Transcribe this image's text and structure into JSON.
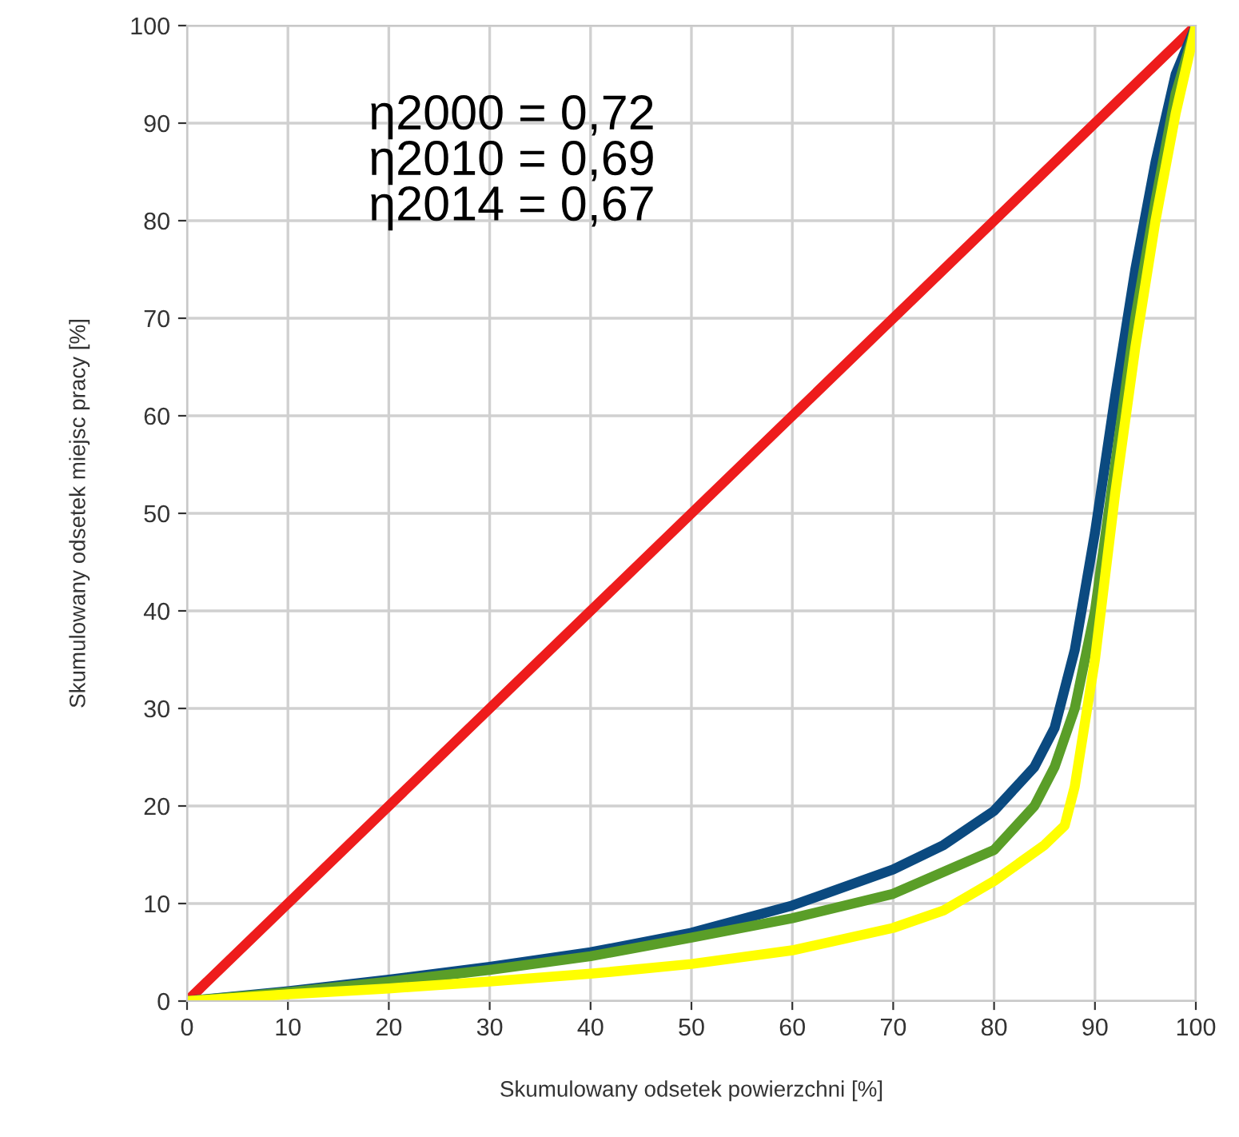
{
  "chart_data": {
    "type": "line",
    "xlabel": "Skumulowany odsetek powierzchni [%]",
    "ylabel": "Skumulowany odsetek miejsc pracy [%]",
    "annotations": [
      "η2000 = 0,72\nη2010 = 0,69\nη2014 = 0,67"
    ],
    "xlim": [
      0,
      100
    ],
    "ylim": [
      0,
      100
    ],
    "xticks": [
      0,
      10,
      20,
      30,
      40,
      50,
      60,
      70,
      80,
      90,
      100
    ],
    "yticks": [
      0,
      10,
      20,
      30,
      40,
      50,
      60,
      70,
      80,
      90,
      100
    ],
    "grid": true,
    "marker": "none",
    "line_style": "solid",
    "series": [
      {
        "color": "#ee1c1c",
        "x": [
          0,
          100
        ],
        "values": [
          0,
          100
        ]
      },
      {
        "color": "#0b4a80",
        "x": [
          0,
          10,
          20,
          30,
          40,
          50,
          60,
          70,
          75,
          80,
          84,
          86,
          88,
          90,
          92,
          94,
          96,
          98,
          100
        ],
        "values": [
          0,
          1,
          2.2,
          3.5,
          5,
          7,
          9.8,
          13.5,
          16,
          19.5,
          24,
          28,
          36,
          48,
          62,
          75,
          86,
          95,
          100
        ]
      },
      {
        "color": "#5a9e28",
        "x": [
          0,
          10,
          20,
          30,
          40,
          50,
          60,
          70,
          80,
          84,
          86,
          88,
          90,
          92,
          94,
          96,
          98,
          100
        ],
        "values": [
          0,
          0.9,
          2,
          3.2,
          4.6,
          6.5,
          8.5,
          11,
          15.5,
          20,
          24,
          30,
          40,
          55,
          70,
          82,
          93,
          100
        ]
      },
      {
        "color": "#ffff00",
        "x": [
          0,
          10,
          20,
          30,
          40,
          50,
          60,
          70,
          75,
          80,
          85,
          87,
          88,
          90,
          92,
          94,
          96,
          98,
          100
        ],
        "values": [
          0,
          0.7,
          1.3,
          2,
          2.8,
          3.8,
          5.2,
          7.5,
          9.3,
          12.3,
          16,
          18,
          22,
          35,
          52,
          67,
          80,
          91,
          100
        ]
      }
    ]
  }
}
